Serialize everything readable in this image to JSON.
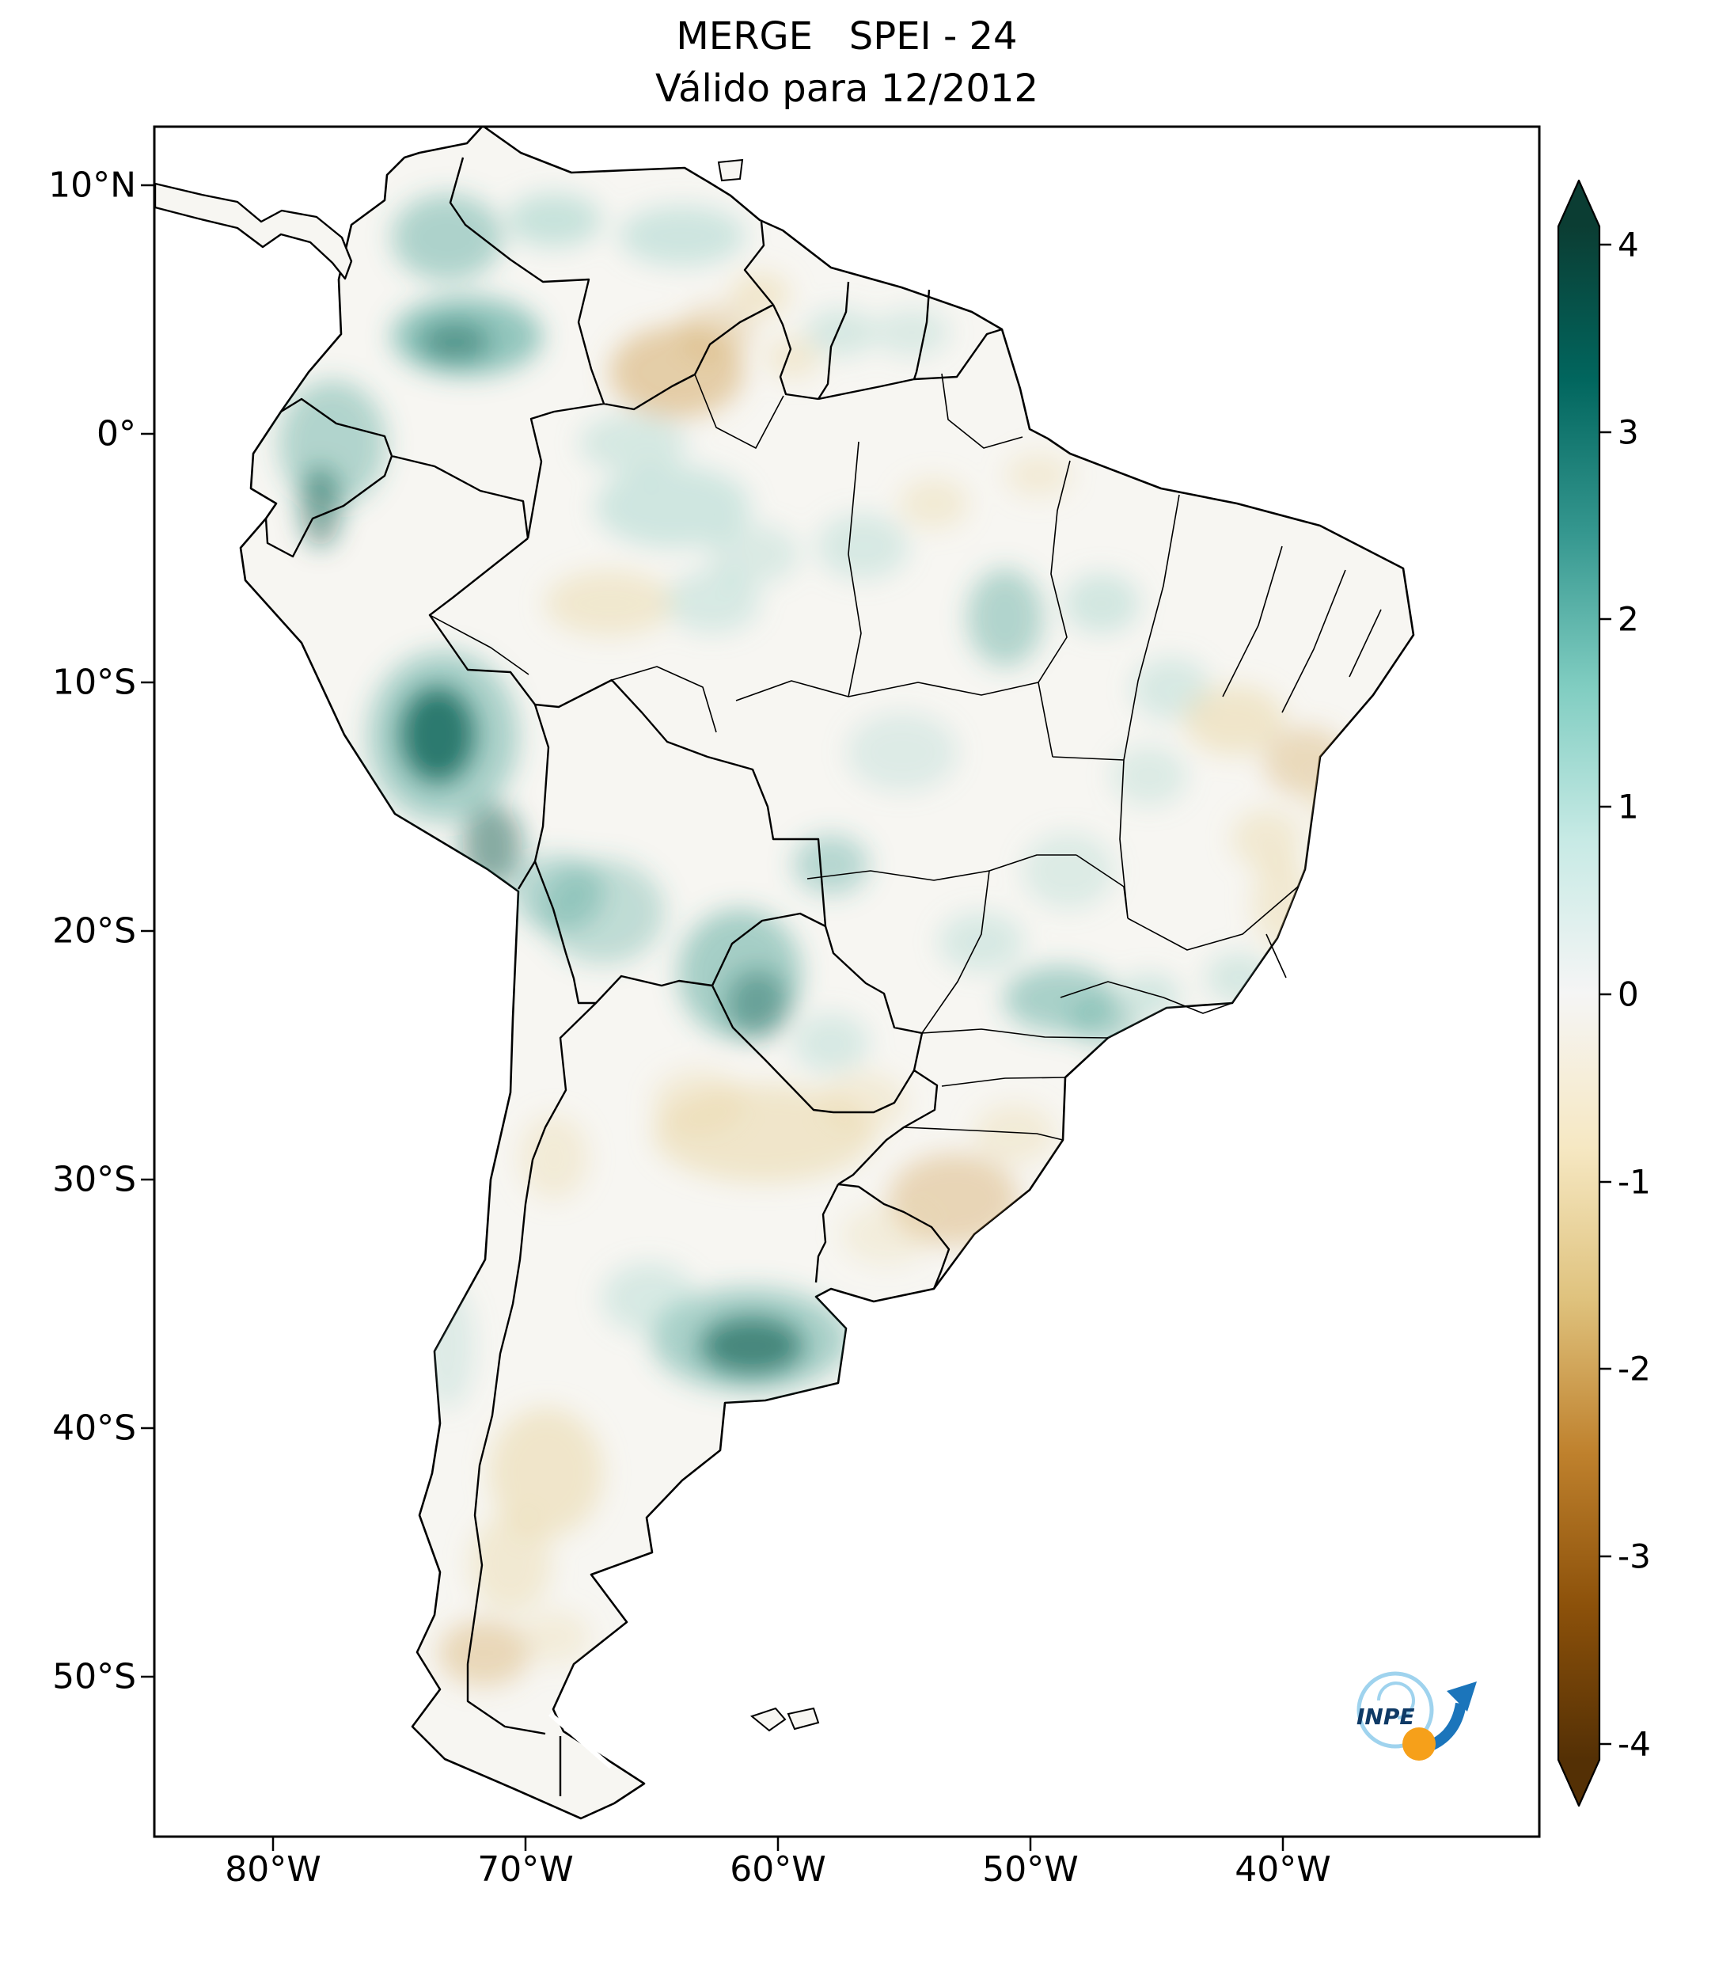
{
  "title": {
    "line1": "MERGE   SPEI - 24",
    "line2": "Válido para 12/2012"
  },
  "axes": {
    "y_ticks": [
      "10°N",
      "0°",
      "10°S",
      "20°S",
      "30°S",
      "40°S",
      "50°S"
    ],
    "x_ticks": [
      "80°W",
      "70°W",
      "60°W",
      "50°W",
      "40°W"
    ]
  },
  "colorbar": {
    "ticks": [
      "4",
      "3",
      "2",
      "1",
      "0",
      "-1",
      "-2",
      "-3",
      "-4"
    ],
    "gradient_stops": [
      "#0b3d33",
      "#01665e",
      "#35978f",
      "#80cdc1",
      "#c7eae5",
      "#f5f5f5",
      "#f6e8c3",
      "#dfc27d",
      "#bf812d",
      "#8c510a",
      "#543005"
    ]
  },
  "logo": {
    "label": "INPE"
  },
  "chart_data": {
    "type": "heatmap",
    "title": "MERGE SPEI - 24",
    "subtitle": "Válido para 12/2012",
    "region": "South America",
    "value_range": [
      -4,
      4
    ],
    "colorbar_ticks": [
      4,
      3,
      2,
      1,
      0,
      -1,
      -2,
      -3,
      -4
    ],
    "x_ticks": [
      "80°W",
      "70°W",
      "60°W",
      "50°W",
      "40°W"
    ],
    "y_ticks": [
      "10°N",
      "0°",
      "10°S",
      "20°S",
      "30°S",
      "40°S",
      "50°S"
    ],
    "colormap_stops": [
      "#0b3d33",
      "#01665e",
      "#35978f",
      "#80cdc1",
      "#c7eae5",
      "#f5f5f5",
      "#f6e8c3",
      "#dfc27d",
      "#bf812d",
      "#8c510a",
      "#543005"
    ]
  }
}
